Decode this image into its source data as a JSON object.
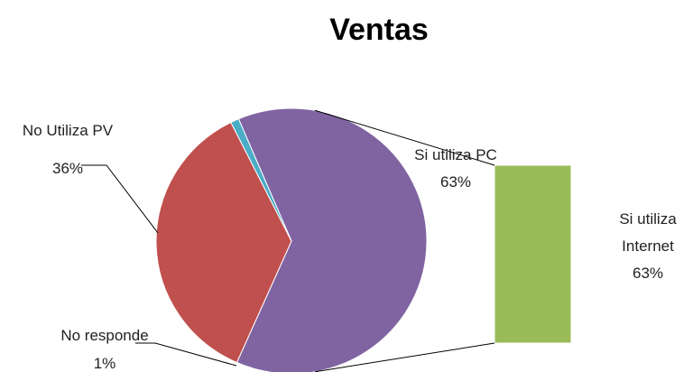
{
  "chart_data": {
    "type": "pie",
    "title": "Ventas",
    "categories": [
      "Si utiliza PC",
      "No Utiliza PV",
      "No responde"
    ],
    "values": [
      63,
      36,
      1
    ],
    "value_labels": [
      "63%",
      "36%",
      "1%"
    ],
    "colors": [
      "#8064a2",
      "#c0504d",
      "#4bacc6"
    ],
    "breakdown": {
      "categories": [
        "Si utiliza Internet"
      ],
      "values": [
        63
      ],
      "value_labels": [
        "63%"
      ],
      "color": "#9bbb59"
    }
  }
}
